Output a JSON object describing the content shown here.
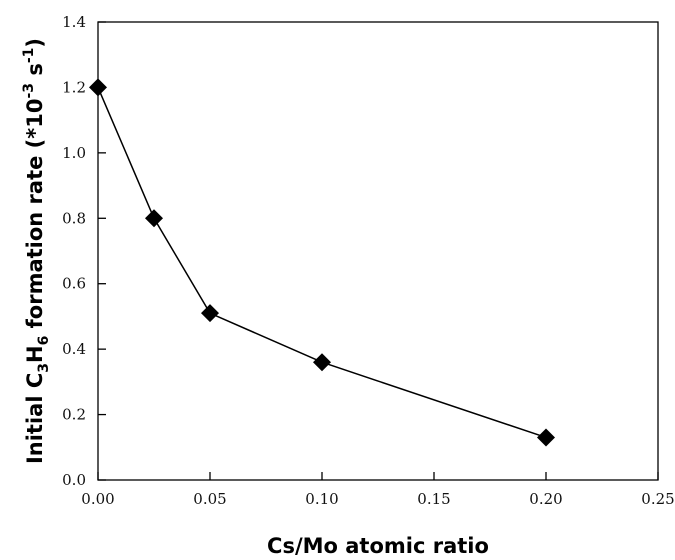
{
  "chart_data": {
    "type": "line",
    "x": [
      0.0,
      0.025,
      0.05,
      0.1,
      0.2
    ],
    "series": [
      {
        "values": [
          1.2,
          0.8,
          0.51,
          0.36,
          0.13
        ],
        "marker": "diamond",
        "color": "#000000"
      }
    ],
    "xlabel": "Cs/Mo atomic ratio",
    "ylabel": {
      "prefix": "Initial C",
      "sub1": "3",
      "mid1": "H",
      "sub2": "6",
      "mid2": " formation rate (*10",
      "sup1": "-3",
      "mid3": " s",
      "sup2": "-1",
      "suffix": ")"
    },
    "xlim": [
      0,
      0.25
    ],
    "ylim": [
      0,
      1.4
    ],
    "xticks": [
      {
        "value": 0.0,
        "label": "0.00"
      },
      {
        "value": 0.05,
        "label": "0.05"
      },
      {
        "value": 0.1,
        "label": "0.10"
      },
      {
        "value": 0.15,
        "label": "0.15"
      },
      {
        "value": 0.2,
        "label": "0.20"
      },
      {
        "value": 0.25,
        "label": "0.25"
      }
    ],
    "yticks": [
      {
        "value": 0.0,
        "label": "0.0"
      },
      {
        "value": 0.2,
        "label": "0.2"
      },
      {
        "value": 0.4,
        "label": "0.4"
      },
      {
        "value": 0.6,
        "label": "0.6"
      },
      {
        "value": 0.8,
        "label": "0.8"
      },
      {
        "value": 1.0,
        "label": "1.0"
      },
      {
        "value": 1.2,
        "label": "1.2"
      },
      {
        "value": 1.4,
        "label": "1.4"
      }
    ],
    "grid": false,
    "legend": "none"
  }
}
